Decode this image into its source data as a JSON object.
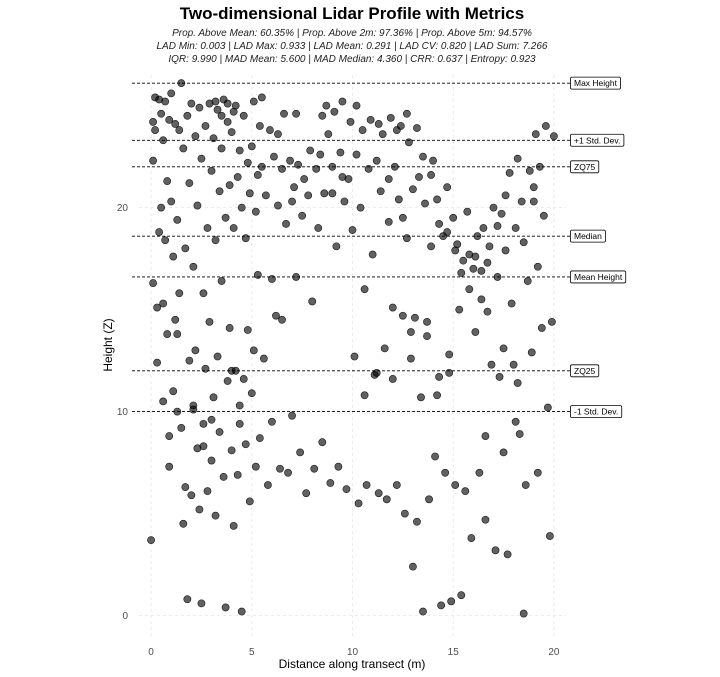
{
  "chart_data": {
    "type": "scatter",
    "title": "Two-dimensional Lidar Profile with Metrics",
    "subtitle_lines": [
      "Prop. Above Mean: 60.35% | Prop. Above 2m: 97.36% | Prop. Above 5m: 94.57%",
      "LAD Min: 0.003 | LAD Max: 0.933 | LAD Mean: 0.291 | LAD CV: 0.820 | LAD Sum: 7.266",
      "IQR: 9.990 | MAD Mean: 5.600 | MAD Median: 4.360 | CRR: 0.637 | Entropy: 0.923"
    ],
    "xlabel": "Distance along transect (m)",
    "ylabel": "Height (Z)",
    "xlim": [
      -0.6,
      20.6
    ],
    "ylim": [
      -1.0,
      26.5
    ],
    "x_ticks": [
      0,
      5,
      10,
      15,
      20
    ],
    "y_ticks": [
      0,
      10,
      20
    ],
    "grid": true,
    "reference_lines": [
      {
        "label": "Max Height",
        "y": 26.1
      },
      {
        "label": "+1 Std. Dev.",
        "y": 23.3
      },
      {
        "label": "ZQ75",
        "y": 22.0
      },
      {
        "label": "Median",
        "y": 18.6
      },
      {
        "label": "Mean Height",
        "y": 16.6
      },
      {
        "label": "ZQ25",
        "y": 12.0
      },
      {
        "label": "-1 Std. Dev.",
        "y": 10.0
      }
    ],
    "points": [
      [
        0.0,
        3.7
      ],
      [
        0.1,
        16.3
      ],
      [
        0.1,
        22.3
      ],
      [
        0.1,
        24.2
      ],
      [
        0.2,
        25.4
      ],
      [
        0.2,
        23.8
      ],
      [
        0.3,
        12.4
      ],
      [
        0.3,
        15.1
      ],
      [
        0.4,
        18.8
      ],
      [
        0.4,
        25.3
      ],
      [
        0.5,
        20.0
      ],
      [
        0.5,
        24.6
      ],
      [
        0.6,
        15.3
      ],
      [
        0.6,
        23.3
      ],
      [
        0.7,
        25.2
      ],
      [
        0.7,
        18.4
      ],
      [
        0.8,
        21.3
      ],
      [
        0.8,
        13.8
      ],
      [
        0.9,
        24.3
      ],
      [
        0.9,
        8.8
      ],
      [
        1.0,
        25.6
      ],
      [
        1.0,
        20.3
      ],
      [
        1.1,
        17.6
      ],
      [
        1.1,
        11.0
      ],
      [
        1.2,
        24.1
      ],
      [
        1.2,
        14.5
      ],
      [
        1.3,
        19.4
      ],
      [
        1.3,
        10.0
      ],
      [
        1.4,
        23.8
      ],
      [
        1.4,
        15.8
      ],
      [
        1.5,
        26.1
      ],
      [
        1.5,
        9.2
      ],
      [
        1.6,
        22.9
      ],
      [
        1.6,
        4.5
      ],
      [
        1.7,
        18.0
      ],
      [
        1.7,
        6.3
      ],
      [
        1.8,
        24.5
      ],
      [
        1.8,
        0.8
      ],
      [
        1.9,
        21.2
      ],
      [
        1.9,
        12.5
      ],
      [
        2.0,
        25.1
      ],
      [
        2.0,
        5.9
      ],
      [
        2.1,
        17.1
      ],
      [
        2.1,
        10.3
      ],
      [
        2.2,
        23.5
      ],
      [
        2.2,
        13.0
      ],
      [
        2.3,
        20.1
      ],
      [
        2.3,
        8.2
      ],
      [
        2.4,
        24.9
      ],
      [
        2.4,
        5.2
      ],
      [
        2.5,
        22.4
      ],
      [
        2.5,
        0.6
      ],
      [
        2.6,
        15.8
      ],
      [
        2.6,
        9.4
      ],
      [
        2.7,
        24.0
      ],
      [
        2.7,
        12.1
      ],
      [
        2.8,
        19.0
      ],
      [
        2.8,
        6.1
      ],
      [
        2.9,
        25.1
      ],
      [
        2.9,
        14.4
      ],
      [
        3.0,
        21.8
      ],
      [
        3.0,
        7.6
      ],
      [
        3.1,
        23.4
      ],
      [
        3.1,
        10.7
      ],
      [
        3.2,
        18.4
      ],
      [
        3.2,
        4.9
      ],
      [
        3.3,
        24.8
      ],
      [
        3.3,
        12.7
      ],
      [
        3.4,
        20.8
      ],
      [
        3.4,
        9.0
      ],
      [
        3.5,
        22.9
      ],
      [
        3.5,
        16.4
      ],
      [
        3.6,
        25.3
      ],
      [
        3.6,
        6.8
      ],
      [
        3.7,
        19.5
      ],
      [
        3.7,
        0.4
      ],
      [
        3.8,
        24.2
      ],
      [
        3.8,
        11.5
      ],
      [
        3.9,
        21.1
      ],
      [
        3.9,
        14.1
      ],
      [
        4.0,
        23.7
      ],
      [
        4.0,
        8.1
      ],
      [
        4.1,
        19.0
      ],
      [
        4.1,
        4.4
      ],
      [
        4.2,
        25.0
      ],
      [
        4.2,
        12.0
      ],
      [
        4.3,
        21.5
      ],
      [
        4.3,
        6.9
      ],
      [
        4.4,
        22.8
      ],
      [
        4.4,
        10.3
      ],
      [
        4.5,
        20.0
      ],
      [
        4.5,
        0.2
      ],
      [
        4.6,
        24.5
      ],
      [
        4.6,
        11.6
      ],
      [
        4.7,
        18.5
      ],
      [
        4.7,
        8.4
      ],
      [
        4.8,
        22.2
      ],
      [
        4.8,
        14.0
      ],
      [
        4.9,
        20.7
      ],
      [
        4.9,
        5.6
      ],
      [
        5.0,
        23.0
      ],
      [
        5.0,
        10.9
      ],
      [
        5.1,
        25.2
      ],
      [
        5.1,
        13.0
      ],
      [
        5.2,
        19.8
      ],
      [
        5.2,
        7.3
      ],
      [
        5.3,
        21.6
      ],
      [
        5.3,
        16.7
      ],
      [
        5.4,
        24.0
      ],
      [
        5.4,
        8.7
      ],
      [
        5.5,
        22.0
      ],
      [
        5.6,
        12.6
      ],
      [
        5.7,
        20.6
      ],
      [
        5.8,
        6.4
      ],
      [
        5.9,
        23.8
      ],
      [
        6.0,
        16.5
      ],
      [
        6.0,
        9.5
      ],
      [
        6.1,
        22.5
      ],
      [
        6.2,
        14.7
      ],
      [
        6.3,
        20.1
      ],
      [
        6.4,
        7.2
      ],
      [
        6.5,
        21.9
      ],
      [
        6.5,
        14.5
      ],
      [
        6.6,
        24.6
      ],
      [
        6.7,
        19.2
      ],
      [
        6.8,
        7.0
      ],
      [
        6.9,
        22.3
      ],
      [
        7.0,
        20.3
      ],
      [
        7.0,
        9.8
      ],
      [
        7.1,
        21.0
      ],
      [
        7.2,
        16.6
      ],
      [
        7.3,
        22.1
      ],
      [
        7.4,
        8.0
      ],
      [
        7.5,
        19.6
      ],
      [
        7.6,
        21.4
      ],
      [
        7.7,
        6.0
      ],
      [
        7.8,
        20.6
      ],
      [
        7.9,
        22.8
      ],
      [
        8.0,
        15.4
      ],
      [
        8.1,
        7.2
      ],
      [
        8.2,
        21.9
      ],
      [
        8.3,
        19.0
      ],
      [
        8.4,
        22.6
      ],
      [
        8.5,
        8.5
      ],
      [
        8.6,
        20.7
      ],
      [
        8.7,
        25.0
      ],
      [
        8.8,
        23.6
      ],
      [
        8.9,
        6.5
      ],
      [
        9.0,
        22.0
      ],
      [
        9.1,
        24.7
      ],
      [
        9.2,
        18.1
      ],
      [
        9.3,
        7.3
      ],
      [
        9.4,
        22.7
      ],
      [
        9.5,
        25.2
      ],
      [
        9.6,
        20.3
      ],
      [
        9.7,
        6.2
      ],
      [
        9.8,
        21.4
      ],
      [
        9.9,
        24.2
      ],
      [
        10.0,
        18.9
      ],
      [
        10.1,
        12.7
      ],
      [
        10.2,
        22.6
      ],
      [
        10.3,
        5.5
      ],
      [
        10.4,
        20.0
      ],
      [
        10.5,
        23.8
      ],
      [
        10.6,
        16.0
      ],
      [
        10.7,
        6.4
      ],
      [
        10.8,
        21.9
      ],
      [
        10.9,
        24.3
      ],
      [
        11.0,
        17.7
      ],
      [
        11.1,
        11.8
      ],
      [
        11.2,
        22.3
      ],
      [
        11.3,
        6.0
      ],
      [
        11.4,
        20.8
      ],
      [
        11.5,
        23.6
      ],
      [
        11.6,
        13.1
      ],
      [
        11.7,
        5.7
      ],
      [
        11.8,
        19.3
      ],
      [
        11.9,
        24.4
      ],
      [
        12.0,
        15.1
      ],
      [
        12.0,
        11.6
      ],
      [
        12.1,
        22.0
      ],
      [
        12.2,
        6.4
      ],
      [
        12.3,
        20.4
      ],
      [
        12.4,
        24.0
      ],
      [
        12.5,
        14.7
      ],
      [
        12.6,
        5.0
      ],
      [
        12.7,
        18.5
      ],
      [
        12.8,
        23.2
      ],
      [
        12.9,
        12.6
      ],
      [
        13.0,
        2.4
      ],
      [
        13.0,
        20.9
      ],
      [
        13.1,
        14.6
      ],
      [
        13.2,
        4.6
      ],
      [
        13.3,
        21.5
      ],
      [
        13.4,
        10.7
      ],
      [
        13.5,
        0.2
      ],
      [
        13.6,
        20.2
      ],
      [
        13.7,
        13.7
      ],
      [
        13.8,
        5.7
      ],
      [
        13.9,
        18.1
      ],
      [
        14.0,
        22.3
      ],
      [
        14.1,
        7.8
      ],
      [
        14.2,
        20.4
      ],
      [
        14.3,
        11.7
      ],
      [
        14.4,
        0.5
      ],
      [
        14.5,
        18.6
      ],
      [
        14.6,
        7.0
      ],
      [
        14.7,
        21.0
      ],
      [
        14.8,
        12.8
      ],
      [
        14.9,
        0.7
      ],
      [
        15.0,
        19.5
      ],
      [
        15.1,
        6.4
      ],
      [
        15.2,
        18.2
      ],
      [
        15.3,
        15.0
      ],
      [
        15.4,
        1.0
      ],
      [
        15.5,
        17.4
      ],
      [
        15.6,
        6.1
      ],
      [
        15.7,
        19.8
      ],
      [
        15.8,
        16.0
      ],
      [
        15.9,
        3.8
      ],
      [
        16.0,
        17.0
      ],
      [
        16.1,
        13.9
      ],
      [
        16.2,
        18.6
      ],
      [
        16.3,
        7.0
      ],
      [
        16.4,
        15.5
      ],
      [
        16.5,
        19.0
      ],
      [
        16.6,
        4.7
      ],
      [
        16.7,
        14.9
      ],
      [
        16.8,
        18.1
      ],
      [
        16.9,
        12.3
      ],
      [
        17.0,
        20.0
      ],
      [
        17.1,
        3.2
      ],
      [
        17.2,
        16.6
      ],
      [
        17.3,
        11.7
      ],
      [
        17.4,
        19.7
      ],
      [
        17.5,
        13.1
      ],
      [
        17.6,
        17.9
      ],
      [
        17.7,
        3.0
      ],
      [
        17.8,
        21.7
      ],
      [
        17.9,
        15.3
      ],
      [
        18.0,
        12.3
      ],
      [
        18.1,
        19.0
      ],
      [
        18.2,
        11.4
      ],
      [
        18.3,
        8.9
      ],
      [
        18.4,
        20.3
      ],
      [
        18.5,
        0.1
      ],
      [
        18.6,
        6.4
      ],
      [
        18.7,
        16.4
      ],
      [
        18.8,
        21.8
      ],
      [
        18.9,
        12.9
      ],
      [
        19.0,
        20.3
      ],
      [
        19.1,
        23.6
      ],
      [
        19.2,
        17.1
      ],
      [
        19.3,
        22.0
      ],
      [
        19.4,
        14.1
      ],
      [
        19.5,
        19.6
      ],
      [
        19.6,
        24.0
      ],
      [
        19.7,
        10.2
      ],
      [
        19.8,
        3.9
      ],
      [
        19.9,
        14.4
      ],
      [
        20.0,
        23.5
      ],
      [
        3.2,
        25.2
      ],
      [
        3.5,
        24.5
      ],
      [
        3.8,
        25.1
      ],
      [
        4.1,
        24.7
      ],
      [
        5.5,
        25.4
      ],
      [
        6.3,
        23.6
      ],
      [
        7.2,
        24.6
      ],
      [
        8.5,
        24.5
      ],
      [
        10.2,
        25.0
      ],
      [
        11.3,
        24.1
      ],
      [
        12.2,
        23.8
      ],
      [
        12.7,
        24.6
      ],
      [
        13.2,
        23.9
      ],
      [
        13.5,
        22.5
      ],
      [
        9.0,
        20.7
      ],
      [
        9.5,
        21.5
      ],
      [
        11.8,
        21.4
      ],
      [
        12.5,
        19.5
      ],
      [
        13.9,
        21.6
      ],
      [
        14.3,
        19.2
      ],
      [
        14.7,
        18.8
      ],
      [
        15.1,
        17.9
      ],
      [
        15.4,
        16.8
      ],
      [
        15.8,
        17.7
      ],
      [
        16.1,
        17.6
      ],
      [
        16.4,
        16.9
      ],
      [
        16.7,
        17.3
      ],
      [
        17.2,
        19.1
      ],
      [
        17.6,
        20.6
      ],
      [
        18.2,
        22.4
      ],
      [
        18.5,
        18.3
      ],
      [
        19.0,
        21.0
      ],
      [
        2.1,
        10.1
      ],
      [
        2.6,
        8.3
      ],
      [
        3.0,
        9.6
      ],
      [
        4.0,
        12.0
      ],
      [
        4.4,
        9.4
      ],
      [
        0.6,
        10.5
      ],
      [
        1.3,
        13.8
      ],
      [
        0.9,
        7.3
      ],
      [
        10.6,
        10.8
      ],
      [
        11.2,
        11.9
      ],
      [
        12.9,
        13.9
      ],
      [
        13.7,
        14.4
      ],
      [
        14.2,
        10.8
      ],
      [
        14.8,
        11.9
      ],
      [
        16.6,
        8.8
      ],
      [
        17.5,
        8.0
      ],
      [
        18.1,
        9.5
      ],
      [
        19.2,
        7.0
      ]
    ]
  }
}
